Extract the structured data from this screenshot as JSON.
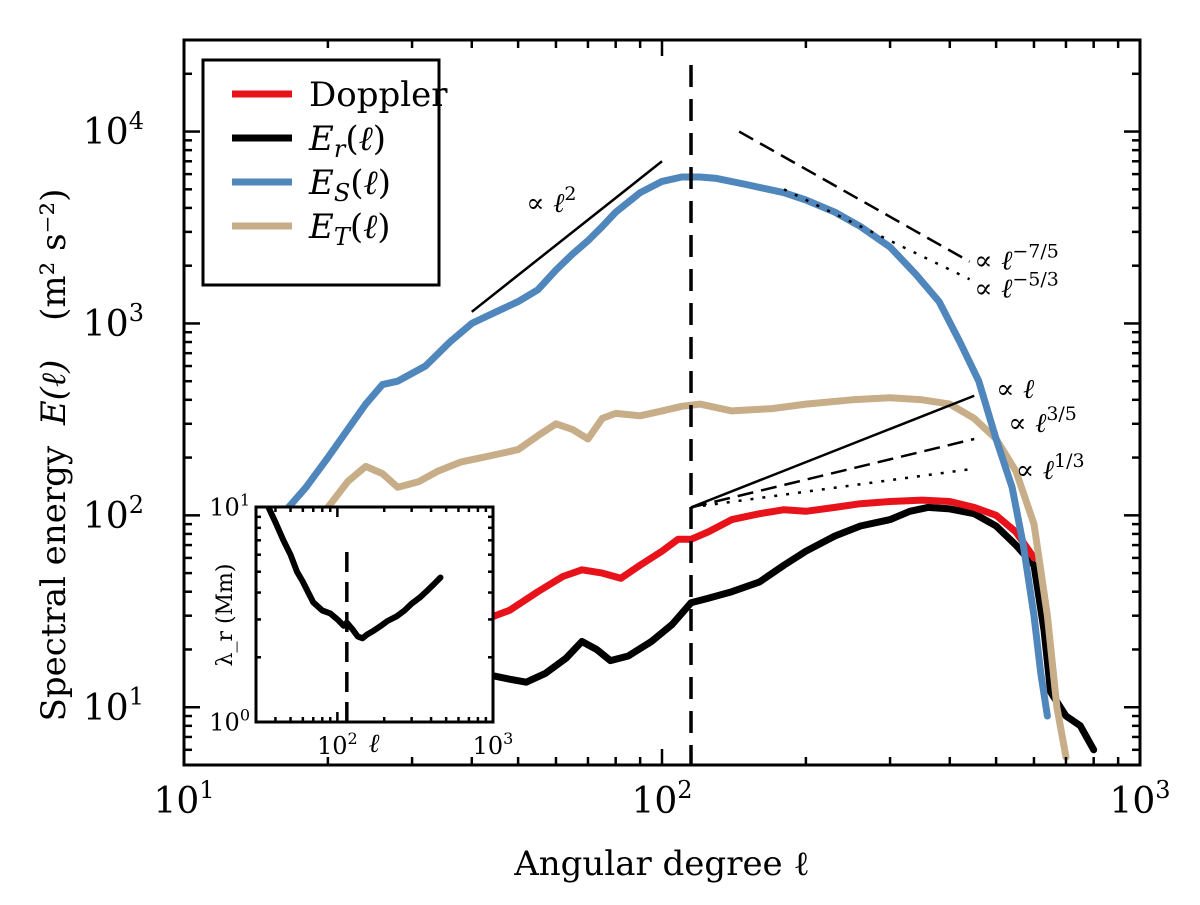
{
  "chart_data": [
    {
      "type": "line",
      "xlabel": "Angular degree ℓ",
      "ylabel_main": "Spectral energy",
      "ylabel_symbol": "E(ℓ)",
      "ylabel_units": "(m² s⁻²)",
      "xscale": "log",
      "yscale": "log",
      "xlim": [
        10,
        1000
      ],
      "ylim": [
        5,
        30000
      ],
      "xticks": [
        {
          "base": "10",
          "exp": "1",
          "value": 10
        },
        {
          "base": "10",
          "exp": "2",
          "value": 100
        },
        {
          "base": "10",
          "exp": "3",
          "value": 1000
        }
      ],
      "yticks": [
        {
          "base": "10",
          "exp": "1",
          "value": 10
        },
        {
          "base": "10",
          "exp": "2",
          "value": 100
        },
        {
          "base": "10",
          "exp": "3",
          "value": 1000
        },
        {
          "base": "10",
          "exp": "4",
          "value": 10000
        }
      ],
      "legend_position": "top-left",
      "vertical_marker": {
        "x": 115,
        "style": "dashed",
        "color": "#000000"
      },
      "series": [
        {
          "name": "Doppler",
          "color": "#e8121a",
          "points": [
            [
              21,
              35
            ],
            [
              24,
              30
            ],
            [
              28,
              25
            ],
            [
              33,
              22
            ],
            [
              40,
              27
            ],
            [
              48,
              32
            ],
            [
              55,
              40
            ],
            [
              62,
              48
            ],
            [
              68,
              52
            ],
            [
              75,
              50
            ],
            [
              82,
              47
            ],
            [
              90,
              55
            ],
            [
              100,
              65
            ],
            [
              108,
              75
            ],
            [
              115,
              75
            ],
            [
              125,
              82
            ],
            [
              140,
              95
            ],
            [
              160,
              102
            ],
            [
              180,
              107
            ],
            [
              200,
              105
            ],
            [
              230,
              110
            ],
            [
              260,
              115
            ],
            [
              300,
              118
            ],
            [
              350,
              120
            ],
            [
              400,
              118
            ],
            [
              450,
              110
            ],
            [
              500,
              100
            ],
            [
              550,
              82
            ],
            [
              600,
              60
            ]
          ]
        },
        {
          "name": "E_r(ℓ)",
          "color": "#000000",
          "points": [
            [
              21,
              25
            ],
            [
              25,
              20
            ],
            [
              30,
              18
            ],
            [
              35,
              17
            ],
            [
              42,
              15
            ],
            [
              48,
              14
            ],
            [
              52,
              13.5
            ],
            [
              57,
              15
            ],
            [
              63,
              18
            ],
            [
              68,
              22
            ],
            [
              73,
              20
            ],
            [
              78,
              17.5
            ],
            [
              85,
              18.5
            ],
            [
              95,
              22
            ],
            [
              105,
              27
            ],
            [
              115,
              35
            ],
            [
              125,
              37
            ],
            [
              140,
              40
            ],
            [
              160,
              45
            ],
            [
              180,
              55
            ],
            [
              200,
              65
            ],
            [
              230,
              78
            ],
            [
              260,
              88
            ],
            [
              300,
              95
            ],
            [
              330,
              105
            ],
            [
              360,
              110
            ],
            [
              400,
              108
            ],
            [
              450,
              102
            ],
            [
              500,
              88
            ],
            [
              550,
              70
            ],
            [
              600,
              55
            ],
            [
              630,
              25
            ],
            [
              650,
              12
            ],
            [
              700,
              9
            ],
            [
              750,
              8
            ],
            [
              800,
              6
            ]
          ]
        },
        {
          "name": "E_S(ℓ)",
          "color": "#4f86bb",
          "points": [
            [
              16,
              100
            ],
            [
              18,
              140
            ],
            [
              20,
              200
            ],
            [
              22,
              280
            ],
            [
              24,
              380
            ],
            [
              26,
              480
            ],
            [
              28,
              500
            ],
            [
              32,
              600
            ],
            [
              36,
              800
            ],
            [
              40,
              1000
            ],
            [
              45,
              1150
            ],
            [
              50,
              1300
            ],
            [
              55,
              1500
            ],
            [
              60,
              1900
            ],
            [
              65,
              2300
            ],
            [
              70,
              2700
            ],
            [
              75,
              3200
            ],
            [
              80,
              3800
            ],
            [
              90,
              4800
            ],
            [
              100,
              5500
            ],
            [
              110,
              5800
            ],
            [
              120,
              5800
            ],
            [
              130,
              5700
            ],
            [
              150,
              5300
            ],
            [
              180,
              4800
            ],
            [
              200,
              4400
            ],
            [
              230,
              3800
            ],
            [
              260,
              3200
            ],
            [
              300,
              2500
            ],
            [
              340,
              1800
            ],
            [
              380,
              1300
            ],
            [
              420,
              800
            ],
            [
              460,
              500
            ],
            [
              500,
              250
            ],
            [
              540,
              140
            ],
            [
              570,
              70
            ],
            [
              600,
              30
            ],
            [
              620,
              15
            ],
            [
              640,
              9
            ]
          ]
        },
        {
          "name": "E_T(ℓ)",
          "color": "#c7ad88",
          "points": [
            [
              20,
              110
            ],
            [
              22,
              150
            ],
            [
              24,
              180
            ],
            [
              26,
              165
            ],
            [
              28,
              140
            ],
            [
              31,
              150
            ],
            [
              34,
              170
            ],
            [
              38,
              190
            ],
            [
              42,
              200
            ],
            [
              46,
              210
            ],
            [
              50,
              220
            ],
            [
              55,
              260
            ],
            [
              60,
              300
            ],
            [
              65,
              280
            ],
            [
              70,
              250
            ],
            [
              75,
              320
            ],
            [
              80,
              340
            ],
            [
              90,
              330
            ],
            [
              100,
              350
            ],
            [
              110,
              370
            ],
            [
              120,
              380
            ],
            [
              140,
              350
            ],
            [
              170,
              360
            ],
            [
              200,
              380
            ],
            [
              250,
              400
            ],
            [
              300,
              410
            ],
            [
              350,
              400
            ],
            [
              400,
              380
            ],
            [
              450,
              320
            ],
            [
              500,
              250
            ],
            [
              550,
              170
            ],
            [
              600,
              90
            ],
            [
              640,
              30
            ],
            [
              670,
              10
            ],
            [
              700,
              5.5
            ]
          ]
        }
      ],
      "annotations": [
        {
          "label": "∝ ℓ",
          "exp": "2",
          "style": "solid",
          "from": [
            40,
            1150
          ],
          "to": [
            100,
            7000
          ],
          "text_at": [
            52,
            4200
          ]
        },
        {
          "label": "∝ ℓ",
          "exp": "−7/5",
          "style": "dashed",
          "from": [
            145,
            10000
          ],
          "to": [
            440,
            2100
          ],
          "text_at": [
            450,
            2100
          ]
        },
        {
          "label": "∝ ℓ",
          "exp": "−5/3",
          "style": "dotted",
          "from": [
            180,
            5000
          ],
          "to": [
            440,
            1700
          ],
          "text_at": [
            450,
            1500
          ]
        },
        {
          "label": "∝ ℓ",
          "exp": "",
          "style": "solid",
          "from": [
            115,
            110
          ],
          "to": [
            450,
            420
          ],
          "text_at": [
            500,
            450
          ]
        },
        {
          "label": "∝ ℓ",
          "exp": "3/5",
          "style": "dashed",
          "from": [
            115,
            110
          ],
          "to": [
            450,
            250
          ],
          "text_at": [
            530,
            300
          ]
        },
        {
          "label": "∝ ℓ",
          "exp": "1/3",
          "style": "dotted",
          "from": [
            115,
            110
          ],
          "to": [
            450,
            175
          ],
          "text_at": [
            550,
            170
          ]
        }
      ]
    },
    {
      "type": "line",
      "xlabel": "ℓ",
      "ylabel": "λ_r (Mm)",
      "xscale": "log",
      "yscale": "log",
      "xlim": [
        30,
        1000
      ],
      "ylim": [
        1,
        10
      ],
      "xticks": [
        {
          "base": "10",
          "exp": "2",
          "value": 100
        },
        {
          "base": "10",
          "exp": "3",
          "value": 1000
        }
      ],
      "yticks": [
        {
          "base": "10",
          "exp": "0",
          "value": 1
        },
        {
          "base": "10",
          "exp": "1",
          "value": 10
        }
      ],
      "vertical_marker": {
        "x": 115,
        "style": "dashed",
        "color": "#000000"
      },
      "series": [
        {
          "color": "#000000",
          "points": [
            [
              36,
              10
            ],
            [
              40,
              8.5
            ],
            [
              45,
              7
            ],
            [
              50,
              6
            ],
            [
              55,
              5
            ],
            [
              60,
              4.5
            ],
            [
              65,
              4
            ],
            [
              70,
              3.6
            ],
            [
              80,
              3.3
            ],
            [
              90,
              3.2
            ],
            [
              100,
              3.0
            ],
            [
              110,
              2.8
            ],
            [
              115,
              2.9
            ],
            [
              125,
              2.7
            ],
            [
              135,
              2.5
            ],
            [
              145,
              2.45
            ],
            [
              155,
              2.55
            ],
            [
              170,
              2.65
            ],
            [
              190,
              2.8
            ],
            [
              210,
              2.95
            ],
            [
              240,
              3.1
            ],
            [
              270,
              3.3
            ],
            [
              300,
              3.55
            ],
            [
              340,
              3.8
            ],
            [
              380,
              4.1
            ],
            [
              420,
              4.4
            ],
            [
              460,
              4.7
            ]
          ]
        }
      ]
    }
  ]
}
